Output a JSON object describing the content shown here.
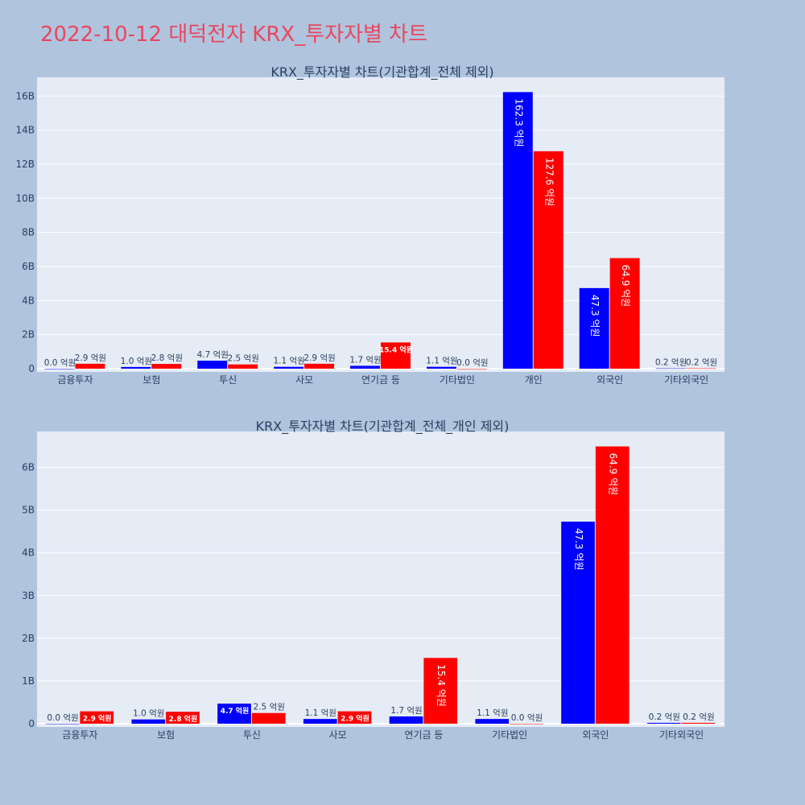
{
  "title": "2022-10-12 대덕전자 KRX_투자자별 차트",
  "colors": {
    "series_a": "#0000ff",
    "series_b": "#ff0000",
    "plot_bg": "#e5ecf6",
    "page_bg": "#b0c4de",
    "title": "#e8475f"
  },
  "chart_data": [
    {
      "type": "bar",
      "title": "KRX_투자자별 차트(기관합계_전체 제외)",
      "categories": [
        "금융투자",
        "보험",
        "투신",
        "사모",
        "연기금 등",
        "기타법인",
        "개인",
        "외국인",
        "기타외국인"
      ],
      "series": [
        {
          "values": [
            0.0,
            1.0,
            4.7,
            1.1,
            1.7,
            1.1,
            162.3,
            47.3,
            0.2
          ],
          "labels": [
            "0.0 억원",
            "1.0 억원",
            "4.7 억원",
            "1.1 억원",
            "1.7 억원",
            "1.1 억원",
            "162.3 억원",
            "47.3 억원",
            "0.2 억원"
          ]
        },
        {
          "values": [
            2.9,
            2.8,
            2.5,
            2.9,
            15.4,
            0.0,
            127.6,
            64.9,
            0.2
          ],
          "labels": [
            "2.9 억원",
            "2.8 억원",
            "2.5 억원",
            "2.9 억원",
            "15.4 억원",
            "0.0 억원",
            "127.6 억원",
            "64.9 억원",
            "0.2 억원"
          ]
        }
      ],
      "yticks": [
        "0",
        "2B",
        "4B",
        "6B",
        "8B",
        "10B",
        "12B",
        "14B",
        "16B"
      ],
      "ylim": [
        0,
        171
      ],
      "grid": true
    },
    {
      "type": "bar",
      "title": "KRX_투자자별 차트(기관합계_전체_개인 제외)",
      "categories": [
        "금융투자",
        "보험",
        "투신",
        "사모",
        "연기금 등",
        "기타법인",
        "외국인",
        "기타외국인"
      ],
      "series": [
        {
          "values": [
            0.0,
            1.0,
            4.7,
            1.1,
            1.7,
            1.1,
            47.3,
            0.2
          ],
          "labels": [
            "0.0 억원",
            "1.0 억원",
            "4.7 억원",
            "1.1 억원",
            "1.7 억원",
            "1.1 억원",
            "47.3 억원",
            "0.2 억원"
          ]
        },
        {
          "values": [
            2.9,
            2.8,
            2.5,
            2.9,
            15.4,
            0.0,
            64.9,
            0.2
          ],
          "labels": [
            "2.9 억원",
            "2.8 억원",
            "2.5 억원",
            "2.9 억원",
            "15.4 억원",
            "0.0 억원",
            "64.9 억원",
            "0.2 억원"
          ]
        }
      ],
      "yticks": [
        "0",
        "1B",
        "2B",
        "3B",
        "4B",
        "5B",
        "6B"
      ],
      "ylim": [
        0,
        68.4
      ],
      "grid": true
    }
  ]
}
